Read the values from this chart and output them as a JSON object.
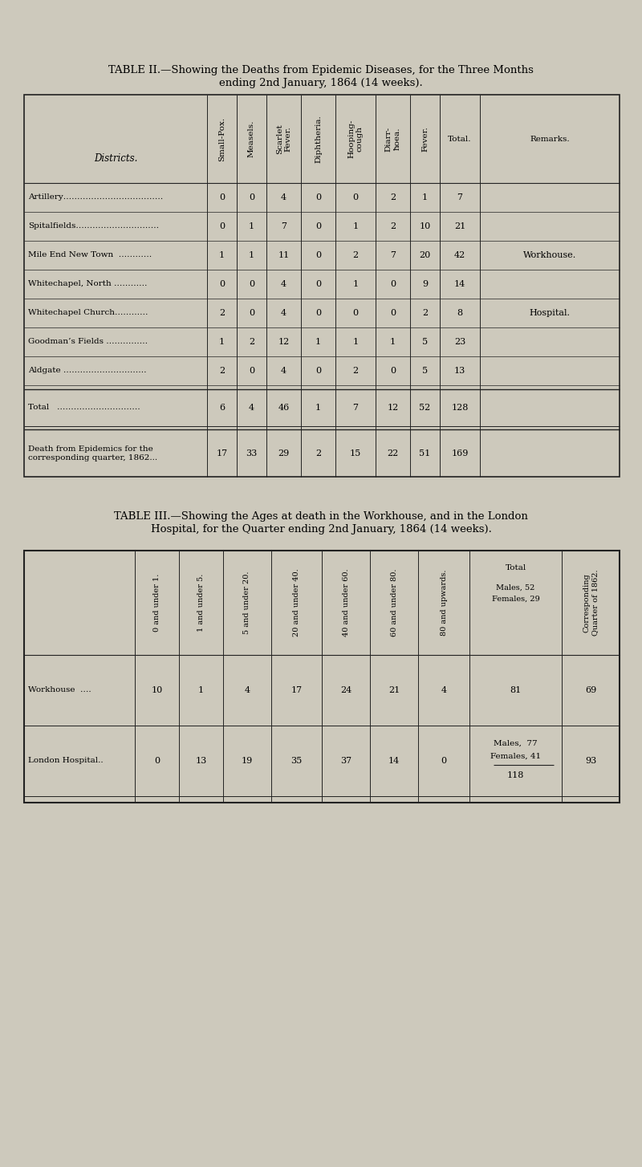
{
  "bg_color": "#cdc9bc",
  "title2_line1": "TABLE II.—Showing the Deaths from Epidemic Diseases, for the Three Months",
  "title2_line2": "ending 2nd January, 1864 (14 weeks).",
  "title3_line1": "TABLE III.—Showing the Ages at death in the Workhouse, and in the London",
  "title3_line2": "Hospital, for the Quarter ending 2nd January, 1864 (14 weeks).",
  "t2_district_label": "Districts.",
  "t2_col_headers": [
    "Small-Pox.",
    "Measels.",
    "Scarlet Fever.",
    "Diphtheria.",
    "Hooping-cough",
    "Diarr-ħoea.",
    "Fever.",
    "Total.",
    "Remarks."
  ],
  "t2_row_labels": [
    "Artillery………………………………",
    "Spitalfields…………………………",
    "Mile End New Town  …………",
    "Whitechapel, North …………",
    "Whitechapel Church…………",
    "Goodman’s Fields ……………",
    "Aldgate …………………………"
  ],
  "t2_data": [
    [
      0,
      0,
      4,
      0,
      0,
      2,
      1,
      7,
      ""
    ],
    [
      0,
      1,
      7,
      0,
      1,
      2,
      10,
      21,
      ""
    ],
    [
      1,
      1,
      11,
      0,
      2,
      7,
      20,
      42,
      "Workhouse."
    ],
    [
      0,
      0,
      4,
      0,
      1,
      0,
      9,
      14,
      ""
    ],
    [
      2,
      0,
      4,
      0,
      0,
      0,
      2,
      8,
      "Hospital."
    ],
    [
      1,
      2,
      12,
      1,
      1,
      1,
      5,
      23,
      ""
    ],
    [
      2,
      0,
      4,
      0,
      2,
      0,
      5,
      13,
      ""
    ]
  ],
  "t2_total_label": "Total   …………………………",
  "t2_total": [
    6,
    4,
    46,
    1,
    7,
    12,
    52,
    128
  ],
  "t2_prev_label": "Death from Epidemics for the\ncorresponding quarter, 1862...",
  "t2_prev": [
    17,
    33,
    29,
    2,
    15,
    22,
    51,
    169
  ],
  "t3_col_headers": [
    "0 and under 1.",
    "1 and under 5.",
    "5 and under 20.",
    "20 and under 40.",
    "40 and under 60.",
    "60 and under 80.",
    "80 and upwards."
  ],
  "t3_total_header_line1": "Total",
  "t3_total_header_line2": "Males, 52",
  "t3_total_header_line3": "Females, 29",
  "t3_corr_header": "Corresponding\nQuarter of 1862.",
  "t3_rows": [
    {
      "label": "Workhouse  ….",
      "data": [
        10,
        1,
        4,
        17,
        24,
        21,
        4
      ],
      "total_simple": "81",
      "corr": "69"
    },
    {
      "label": "London Hospital..",
      "data": [
        0,
        13,
        19,
        35,
        37,
        14,
        0
      ],
      "total_males": "Males,  77",
      "total_females": "Females, 41",
      "total_sum": "118",
      "corr": "93"
    }
  ]
}
